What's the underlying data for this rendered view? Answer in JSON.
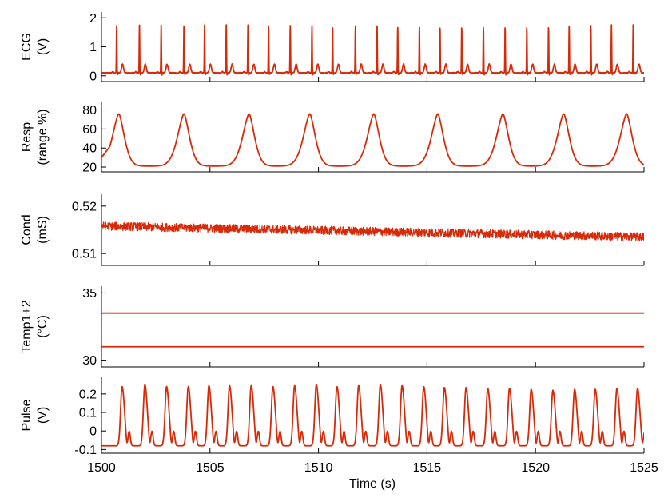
{
  "chart_data": {
    "type": "line",
    "color": "#d62b0a",
    "x_range": [
      1500,
      1525
    ],
    "x_ticks": [
      1500,
      1505,
      1510,
      1515,
      1520,
      1525
    ],
    "xlabel": "Time (s)",
    "grid": false,
    "panels": [
      {
        "id": "ecg",
        "ylabel": [
          "ECG",
          "(V)"
        ],
        "ylim": [
          -0.2,
          2.2
        ],
        "yticks": [
          0,
          1,
          2
        ],
        "signal": {
          "kind": "ecg",
          "beats_s": [
            1500.7,
            1501.75,
            1502.75,
            1503.8,
            1504.75,
            1505.75,
            1506.75,
            1507.7,
            1508.7,
            1509.7,
            1510.65,
            1511.7,
            1512.7,
            1513.65,
            1514.65,
            1515.6,
            1516.6,
            1517.6,
            1518.6,
            1519.6,
            1520.6,
            1521.55,
            1522.55,
            1523.5,
            1524.5
          ],
          "r_amplitude_V": 1.65,
          "t_amplitude_V": 0.4,
          "baseline_V": 0.1
        }
      },
      {
        "id": "resp",
        "ylabel": [
          "Resp",
          "(range %)"
        ],
        "ylim": [
          15,
          88
        ],
        "yticks": [
          20,
          40,
          60,
          80
        ],
        "signal": {
          "kind": "resp",
          "peaks_s": [
            1500.8,
            1503.8,
            1506.8,
            1509.6,
            1512.55,
            1515.5,
            1518.5,
            1521.3,
            1524.2
          ],
          "peak_pct": 76,
          "trough_pct": 21,
          "start_pct": 30,
          "end_pct": 30
        }
      },
      {
        "id": "cond",
        "ylabel": [
          "Cond",
          "(mS)"
        ],
        "ylim": [
          0.5075,
          0.5225
        ],
        "yticks": [
          0.51,
          0.52
        ],
        "signal": {
          "kind": "noise",
          "start_mS": 0.5158,
          "end_mS": 0.5135,
          "noise_mS": 0.0009
        }
      },
      {
        "id": "temp",
        "ylabel": [
          "Temp1+2",
          "(°C)"
        ],
        "ylim": [
          29.5,
          35.5
        ],
        "yticks": [
          30,
          35
        ],
        "signal": {
          "kind": "flat",
          "levels_C": [
            33.5,
            31.0
          ]
        }
      },
      {
        "id": "pulse",
        "ylabel": [
          "Pulse",
          "(V)"
        ],
        "ylim": [
          -0.12,
          0.29
        ],
        "yticks": [
          -0.1,
          0,
          0.1,
          0.2
        ],
        "signal": {
          "kind": "pulse",
          "peaks_s": [
            1500.95,
            1502.0,
            1503.0,
            1504.0,
            1504.95,
            1505.9,
            1506.9,
            1507.9,
            1508.9,
            1509.9,
            1510.85,
            1511.85,
            1512.85,
            1513.85,
            1514.85,
            1515.8,
            1516.8,
            1517.8,
            1518.8,
            1519.8,
            1520.8,
            1521.8,
            1522.75,
            1523.75,
            1524.7
          ],
          "peak_V": [
            0.24,
            0.25,
            0.24,
            0.24,
            0.245,
            0.245,
            0.245,
            0.24,
            0.245,
            0.25,
            0.24,
            0.245,
            0.25,
            0.245,
            0.24,
            0.235,
            0.235,
            0.23,
            0.23,
            0.225,
            0.22,
            0.225,
            0.225,
            0.23,
            0.23
          ],
          "trough_V": -0.08,
          "notch_V": 0.0
        }
      }
    ]
  }
}
